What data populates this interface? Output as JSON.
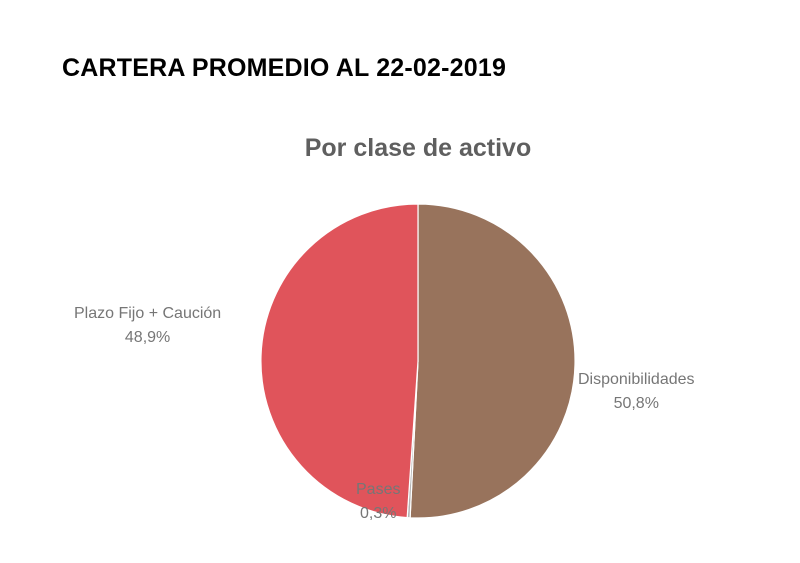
{
  "header": {
    "title": "CARTERA PROMEDIO AL 22-02-2019"
  },
  "chart_data": {
    "type": "pie",
    "title": "Por clase de activo",
    "legend": "none",
    "slices": [
      {
        "label": "Disponibilidades",
        "value": 50.8,
        "value_label": "50,8%",
        "color": "#98735c"
      },
      {
        "label": "Pases",
        "value": 0.3,
        "value_label": "0,3%",
        "color": "#b5b5b5"
      },
      {
        "label": "Plazo Fijo + Caución",
        "value": 48.9,
        "value_label": "48,9%",
        "color": "#e0545b"
      }
    ]
  }
}
